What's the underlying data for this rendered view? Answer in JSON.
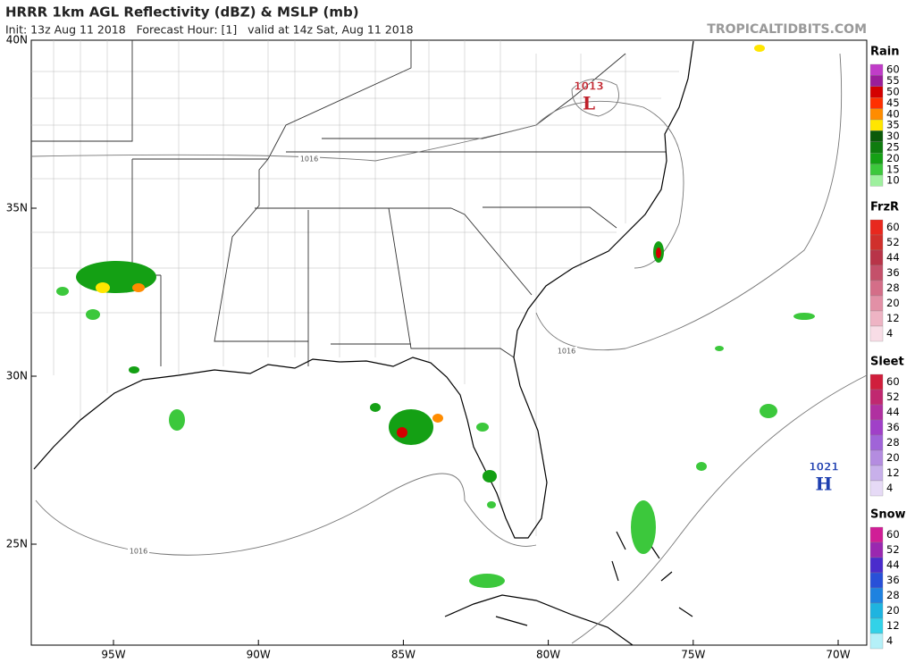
{
  "header": {
    "title": "HRRR 1km AGL Reflectivity (dBZ) & MSLP (mb)",
    "subtitle": "Init: 13z Aug 11 2018   Forecast Hour: [1]   valid at 14z Sat, Aug 11 2018",
    "site": "TROPICALTIDBITS.COM"
  },
  "map": {
    "lat_ticks": [
      {
        "value": 40,
        "label": "40N"
      },
      {
        "value": 35,
        "label": "35N"
      },
      {
        "value": 30,
        "label": "30N"
      },
      {
        "value": 25,
        "label": "25N"
      }
    ],
    "lon_ticks": [
      {
        "value": -95,
        "label": "95W"
      },
      {
        "value": -90,
        "label": "90W"
      },
      {
        "value": -85,
        "label": "85W"
      },
      {
        "value": -80,
        "label": "80W"
      },
      {
        "value": -75,
        "label": "75W"
      },
      {
        "value": -70,
        "label": "70W"
      }
    ],
    "isobar_labels": [
      "1016",
      "1016",
      "1016"
    ],
    "low": {
      "pressure": "1013",
      "letter": "L",
      "color": "#c0202a"
    },
    "high": {
      "pressure": "1021",
      "letter": "H",
      "color": "#1e3fb0"
    }
  },
  "legends": [
    {
      "title": "Rain",
      "labels": [
        60,
        55,
        50,
        45,
        40,
        35,
        30,
        25,
        20,
        15,
        10
      ],
      "colors": [
        "#c03cc8",
        "#9a1e9a",
        "#d40000",
        "#ff3000",
        "#ff8c00",
        "#ffe600",
        "#0a5a0a",
        "#0e7c0e",
        "#14a014",
        "#3cc83c",
        "#9ef09e"
      ]
    },
    {
      "title": "FrzR",
      "labels": [
        60,
        52,
        44,
        36,
        28,
        20,
        12,
        4
      ],
      "colors": [
        "#e8281e",
        "#d0302c",
        "#b83448",
        "#c4506a",
        "#d46e88",
        "#e290a6",
        "#eeb4c4",
        "#f8dde6"
      ]
    },
    {
      "title": "Sleet",
      "labels": [
        60,
        52,
        44,
        36,
        28,
        20,
        12,
        4
      ],
      "colors": [
        "#d01e3c",
        "#c02870",
        "#b030a0",
        "#a040c8",
        "#a064d8",
        "#b48ce0",
        "#c8b0ea",
        "#e6daf6"
      ]
    },
    {
      "title": "Snow",
      "labels": [
        60,
        52,
        44,
        36,
        28,
        20,
        12,
        4
      ],
      "colors": [
        "#d01e96",
        "#9a28b0",
        "#4a2ccc",
        "#2850d8",
        "#1e82e0",
        "#1eb4e0",
        "#32d2e8",
        "#b4f0f8"
      ]
    }
  ]
}
